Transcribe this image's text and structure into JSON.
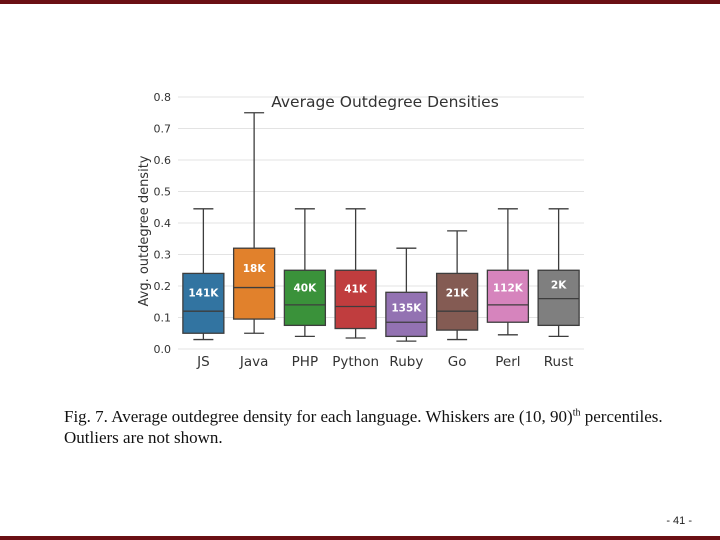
{
  "slide": {
    "caption_lead": "Fig. 7.  Average outdegree density for each language. Whiskers are (10, 90)",
    "caption_sup": "th",
    "caption_tail": "percentiles. Outliers are not shown.",
    "page_number": "- 41 -"
  },
  "chart_data": {
    "type": "box",
    "title": "Average Outdegree Densities",
    "xlabel": "",
    "ylabel": "Avg. outdegree density",
    "ylim": [
      0.0,
      0.8
    ],
    "yticks": [
      "0.0",
      "0.1",
      "0.2",
      "0.3",
      "0.4",
      "0.5",
      "0.6",
      "0.7",
      "0.8"
    ],
    "grid": true,
    "categories": [
      "JS",
      "Java",
      "PHP",
      "Python",
      "Ruby",
      "Go",
      "Perl",
      "Rust"
    ],
    "boxes": [
      {
        "category": "JS",
        "whisker_low": 0.03,
        "q1": 0.05,
        "median": 0.12,
        "q3": 0.24,
        "whisker_high": 0.445,
        "count_label": "141K",
        "color": "#3274a1"
      },
      {
        "category": "Java",
        "whisker_low": 0.05,
        "q1": 0.095,
        "median": 0.195,
        "q3": 0.32,
        "whisker_high": 0.75,
        "count_label": "18K",
        "color": "#e1812c"
      },
      {
        "category": "PHP",
        "whisker_low": 0.04,
        "q1": 0.075,
        "median": 0.14,
        "q3": 0.25,
        "whisker_high": 0.445,
        "count_label": "40K",
        "color": "#3a923a"
      },
      {
        "category": "Python",
        "whisker_low": 0.035,
        "q1": 0.065,
        "median": 0.135,
        "q3": 0.25,
        "whisker_high": 0.445,
        "count_label": "41K",
        "color": "#c03d3e"
      },
      {
        "category": "Ruby",
        "whisker_low": 0.025,
        "q1": 0.04,
        "median": 0.085,
        "q3": 0.18,
        "whisker_high": 0.32,
        "count_label": "135K",
        "color": "#9372b2"
      },
      {
        "category": "Go",
        "whisker_low": 0.03,
        "q1": 0.06,
        "median": 0.12,
        "q3": 0.24,
        "whisker_high": 0.375,
        "count_label": "21K",
        "color": "#845b53"
      },
      {
        "category": "Perl",
        "whisker_low": 0.045,
        "q1": 0.085,
        "median": 0.14,
        "q3": 0.25,
        "whisker_high": 0.445,
        "count_label": "112K",
        "color": "#d684bd"
      },
      {
        "category": "Rust",
        "whisker_low": 0.04,
        "q1": 0.075,
        "median": 0.16,
        "q3": 0.25,
        "whisker_high": 0.445,
        "count_label": "2K",
        "color": "#7f7f7f"
      }
    ]
  }
}
